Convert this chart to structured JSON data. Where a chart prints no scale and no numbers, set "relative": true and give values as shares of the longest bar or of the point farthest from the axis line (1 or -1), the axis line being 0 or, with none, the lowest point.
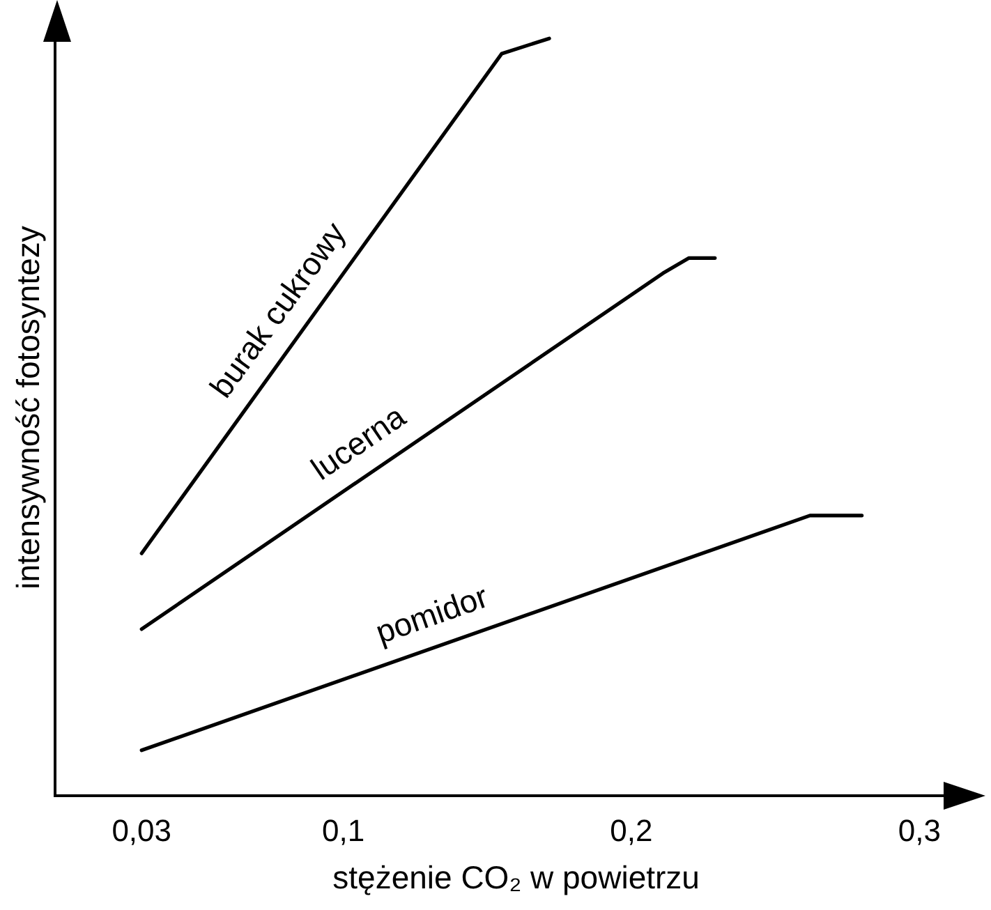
{
  "chart_data": {
    "type": "line",
    "relative": true,
    "xlabel": "stężenie CO₂ w powietrzu",
    "ylabel": "intensywność fotosyntezy",
    "xlim": [
      0,
      0.32
    ],
    "xticks": [
      {
        "value": 0.03,
        "label": "0,03"
      },
      {
        "value": 0.1,
        "label": "0,1"
      },
      {
        "value": 0.2,
        "label": "0,2"
      },
      {
        "value": 0.3,
        "label": "0,3"
      }
    ],
    "tick_labels": "x",
    "grid": false,
    "legend": false,
    "marker": "none",
    "line_style": "solid",
    "series": [
      {
        "name": "burak cukrowy",
        "color": "#000000",
        "x": [
          0.03,
          0.155,
          0.1715
        ],
        "values": [
          0.32,
          0.98,
          1
        ]
      },
      {
        "name": "lucerna",
        "color": "#000000",
        "x": [
          0.03,
          0.211,
          0.22,
          0.229
        ],
        "values": [
          0.22,
          0.69,
          0.71,
          0.71
        ]
      },
      {
        "name": "pomidor",
        "color": "#000000",
        "x": [
          0.03,
          0.262,
          0.28
        ],
        "values": [
          0.06,
          0.37,
          0.37
        ]
      }
    ]
  }
}
